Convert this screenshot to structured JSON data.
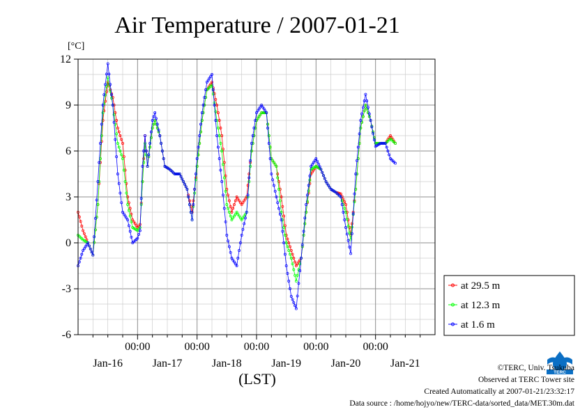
{
  "chart_data": {
    "type": "line",
    "title": "Air Temperature / 2007-01-21",
    "unit_label": "[°C]",
    "xlabel": "(LST)",
    "ylabel": "",
    "ylim": [
      -6,
      12
    ],
    "yticks": [
      -6,
      -3,
      0,
      3,
      6,
      9,
      12
    ],
    "ytick_labels": [
      "-6",
      "-3",
      "0",
      "3",
      "6",
      "9",
      "12"
    ],
    "xlim": [
      0,
      144
    ],
    "time_ticks": [
      {
        "x": 24,
        "label": "00:00"
      },
      {
        "x": 48,
        "label": "00:00"
      },
      {
        "x": 72,
        "label": "00:00"
      },
      {
        "x": 96,
        "label": "00:00"
      },
      {
        "x": 120,
        "label": "00:00"
      }
    ],
    "day_labels": [
      {
        "x": 12,
        "label": "Jan-16"
      },
      {
        "x": 36,
        "label": "Jan-17"
      },
      {
        "x": 60,
        "label": "Jan-18"
      },
      {
        "x": 84,
        "label": "Jan-19"
      },
      {
        "x": 108,
        "label": "Jan-20"
      },
      {
        "x": 132,
        "label": "Jan-21"
      }
    ],
    "grid": true,
    "legend_position": "right",
    "series": [
      {
        "name": "at 29.5 m",
        "color": "#ff0000",
        "points": [
          [
            0,
            2.0
          ],
          [
            2,
            0.8
          ],
          [
            4,
            0.0
          ],
          [
            6,
            -0.8
          ],
          [
            8,
            2.5
          ],
          [
            10,
            8.0
          ],
          [
            12,
            10.5
          ],
          [
            14,
            9.5
          ],
          [
            16,
            7.5
          ],
          [
            18,
            6.5
          ],
          [
            20,
            3.0
          ],
          [
            22,
            1.5
          ],
          [
            24,
            1.0
          ],
          [
            25,
            1.2
          ],
          [
            26,
            4.0
          ],
          [
            27,
            7.0
          ],
          [
            28,
            5.0
          ],
          [
            30,
            7.5
          ],
          [
            31,
            8.0
          ],
          [
            33,
            7.0
          ],
          [
            35,
            5.0
          ],
          [
            37,
            4.8
          ],
          [
            39,
            4.5
          ],
          [
            41,
            4.5
          ],
          [
            44,
            3.5
          ],
          [
            46,
            2.0
          ],
          [
            48,
            5.0
          ],
          [
            50,
            8.0
          ],
          [
            52,
            10.0
          ],
          [
            54,
            10.5
          ],
          [
            56,
            9.0
          ],
          [
            58,
            7.0
          ],
          [
            60,
            3.5
          ],
          [
            62,
            2.0
          ],
          [
            64,
            3.0
          ],
          [
            66,
            2.5
          ],
          [
            68,
            3.0
          ],
          [
            70,
            6.0
          ],
          [
            72,
            8.0
          ],
          [
            74,
            8.5
          ],
          [
            76,
            8.5
          ],
          [
            78,
            5.5
          ],
          [
            80,
            5.0
          ],
          [
            82,
            3.0
          ],
          [
            84,
            0.5
          ],
          [
            86,
            -0.5
          ],
          [
            88,
            -1.5
          ],
          [
            90,
            -1.0
          ],
          [
            92,
            2.0
          ],
          [
            94,
            4.5
          ],
          [
            96,
            5.0
          ],
          [
            98,
            4.8
          ],
          [
            100,
            4.0
          ],
          [
            102,
            3.5
          ],
          [
            104,
            3.3
          ],
          [
            106,
            3.2
          ],
          [
            108,
            2.5
          ],
          [
            110,
            0.5
          ],
          [
            112,
            3.5
          ],
          [
            114,
            7.5
          ],
          [
            116,
            9.0
          ],
          [
            118,
            8.0
          ],
          [
            120,
            6.5
          ],
          [
            122,
            6.5
          ],
          [
            124,
            6.5
          ],
          [
            126,
            7.0
          ],
          [
            128,
            6.5
          ]
        ]
      },
      {
        "name": "at 12.3 m",
        "color": "#00ff00",
        "points": [
          [
            0,
            0.5
          ],
          [
            2,
            0.2
          ],
          [
            4,
            0.0
          ],
          [
            6,
            -0.8
          ],
          [
            8,
            2.5
          ],
          [
            10,
            8.5
          ],
          [
            12,
            10.8
          ],
          [
            14,
            9.0
          ],
          [
            16,
            6.5
          ],
          [
            18,
            5.5
          ],
          [
            20,
            2.5
          ],
          [
            22,
            1.0
          ],
          [
            24,
            0.8
          ],
          [
            25,
            1.0
          ],
          [
            26,
            4.0
          ],
          [
            27,
            6.5
          ],
          [
            28,
            5.0
          ],
          [
            30,
            7.5
          ],
          [
            31,
            8.0
          ],
          [
            33,
            7.0
          ],
          [
            35,
            5.0
          ],
          [
            37,
            4.8
          ],
          [
            39,
            4.5
          ],
          [
            41,
            4.5
          ],
          [
            44,
            3.5
          ],
          [
            46,
            1.5
          ],
          [
            48,
            5.0
          ],
          [
            50,
            8.0
          ],
          [
            52,
            10.0
          ],
          [
            54,
            10.3
          ],
          [
            56,
            8.0
          ],
          [
            58,
            6.0
          ],
          [
            60,
            2.5
          ],
          [
            62,
            1.5
          ],
          [
            64,
            2.0
          ],
          [
            66,
            1.5
          ],
          [
            68,
            2.0
          ],
          [
            70,
            6.0
          ],
          [
            72,
            8.0
          ],
          [
            74,
            8.5
          ],
          [
            76,
            8.5
          ],
          [
            78,
            5.5
          ],
          [
            80,
            5.0
          ],
          [
            82,
            2.0
          ],
          [
            84,
            0.0
          ],
          [
            86,
            -1.0
          ],
          [
            88,
            -2.5
          ],
          [
            90,
            -1.0
          ],
          [
            92,
            2.0
          ],
          [
            94,
            4.8
          ],
          [
            96,
            5.0
          ],
          [
            98,
            4.8
          ],
          [
            100,
            4.0
          ],
          [
            102,
            3.5
          ],
          [
            104,
            3.3
          ],
          [
            106,
            3.0
          ],
          [
            108,
            2.0
          ],
          [
            110,
            0.2
          ],
          [
            112,
            3.5
          ],
          [
            114,
            7.5
          ],
          [
            116,
            9.0
          ],
          [
            118,
            8.0
          ],
          [
            120,
            6.5
          ],
          [
            122,
            6.5
          ],
          [
            124,
            6.5
          ],
          [
            126,
            6.8
          ],
          [
            128,
            6.5
          ]
        ]
      },
      {
        "name": "at 1.6 m",
        "color": "#0000ff",
        "points": [
          [
            0,
            -1.5
          ],
          [
            2,
            -0.5
          ],
          [
            4,
            0.0
          ],
          [
            6,
            -0.8
          ],
          [
            8,
            4.0
          ],
          [
            10,
            9.0
          ],
          [
            12,
            11.7
          ],
          [
            14,
            9.0
          ],
          [
            16,
            4.5
          ],
          [
            18,
            2.0
          ],
          [
            20,
            1.5
          ],
          [
            22,
            0.0
          ],
          [
            24,
            0.3
          ],
          [
            25,
            0.8
          ],
          [
            26,
            5.0
          ],
          [
            27,
            7.0
          ],
          [
            28,
            5.0
          ],
          [
            30,
            8.0
          ],
          [
            31,
            8.5
          ],
          [
            33,
            7.0
          ],
          [
            35,
            5.0
          ],
          [
            37,
            4.8
          ],
          [
            39,
            4.5
          ],
          [
            41,
            4.5
          ],
          [
            44,
            3.5
          ],
          [
            46,
            1.5
          ],
          [
            48,
            5.5
          ],
          [
            50,
            8.5
          ],
          [
            52,
            10.5
          ],
          [
            54,
            11.0
          ],
          [
            56,
            7.0
          ],
          [
            58,
            4.0
          ],
          [
            60,
            0.5
          ],
          [
            62,
            -1.0
          ],
          [
            64,
            -1.5
          ],
          [
            66,
            0.5
          ],
          [
            68,
            2.0
          ],
          [
            70,
            6.5
          ],
          [
            72,
            8.5
          ],
          [
            74,
            9.0
          ],
          [
            76,
            8.5
          ],
          [
            78,
            4.5
          ],
          [
            80,
            3.0
          ],
          [
            82,
            1.5
          ],
          [
            84,
            -1.5
          ],
          [
            86,
            -3.5
          ],
          [
            88,
            -4.3
          ],
          [
            90,
            -1.0
          ],
          [
            92,
            2.5
          ],
          [
            94,
            5.0
          ],
          [
            96,
            5.5
          ],
          [
            98,
            4.8
          ],
          [
            100,
            4.0
          ],
          [
            102,
            3.5
          ],
          [
            104,
            3.3
          ],
          [
            106,
            3.0
          ],
          [
            108,
            1.0
          ],
          [
            110,
            -0.7
          ],
          [
            112,
            4.5
          ],
          [
            114,
            8.0
          ],
          [
            116,
            9.7
          ],
          [
            118,
            8.0
          ],
          [
            120,
            6.3
          ],
          [
            122,
            6.5
          ],
          [
            124,
            6.5
          ],
          [
            126,
            5.5
          ],
          [
            128,
            5.2
          ]
        ]
      }
    ]
  },
  "credits": {
    "copyright": "©TERC, Univ. Tsukuba",
    "observed": "Observed at TERC Tower site",
    "created": "Created Automatically at 2007-01-21/23:32:17",
    "source": "Data source : /home/hojyo/new/TERC-data/sorted_data/MET.30m.dat"
  },
  "logo": {
    "text": "TERC",
    "color": "#0b6fc4"
  }
}
